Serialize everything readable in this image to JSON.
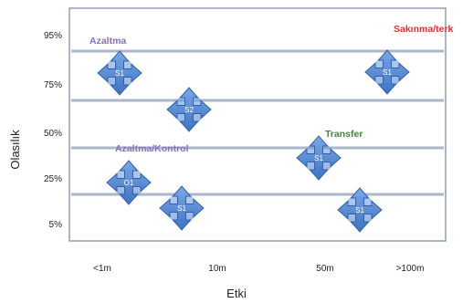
{
  "axes": {
    "y_title": "Olasılık",
    "x_title": "Etki",
    "y_ticks": [
      "95%",
      "75%",
      "50%",
      "25%",
      "5%"
    ],
    "x_ticks": [
      "<1m",
      "10m",
      "50m",
      ">100m"
    ]
  },
  "zones": [
    {
      "label": "Azaltma",
      "color": "#8a6fc0"
    },
    {
      "label": "Sakınma/terk",
      "color": "#e8302a"
    },
    {
      "label": "Transfer",
      "color": "#3a8f2c"
    },
    {
      "label": "Azaltma/Kontrol",
      "color": "#8a6fc0"
    }
  ],
  "markers": [
    {
      "label": "S1",
      "impact": "<1m",
      "probability": "75%"
    },
    {
      "label": "S2",
      "impact": "10m",
      "probability": "75%"
    },
    {
      "label": "S1",
      "impact": ">100m",
      "probability": "75%"
    },
    {
      "label": "S1",
      "impact": "50m",
      "probability": "50%"
    },
    {
      "label": "O1",
      "impact": "<1m",
      "probability": "25%"
    },
    {
      "label": "S1",
      "impact": "10m",
      "probability": "5%"
    },
    {
      "label": "S1",
      "impact": ">100m",
      "probability": "5%"
    }
  ],
  "colors": {
    "marker_fill": "#4f86cf",
    "marker_edge": "#2f62aa",
    "grid": "#a9b7c9",
    "frame": "#8f9eb4"
  }
}
